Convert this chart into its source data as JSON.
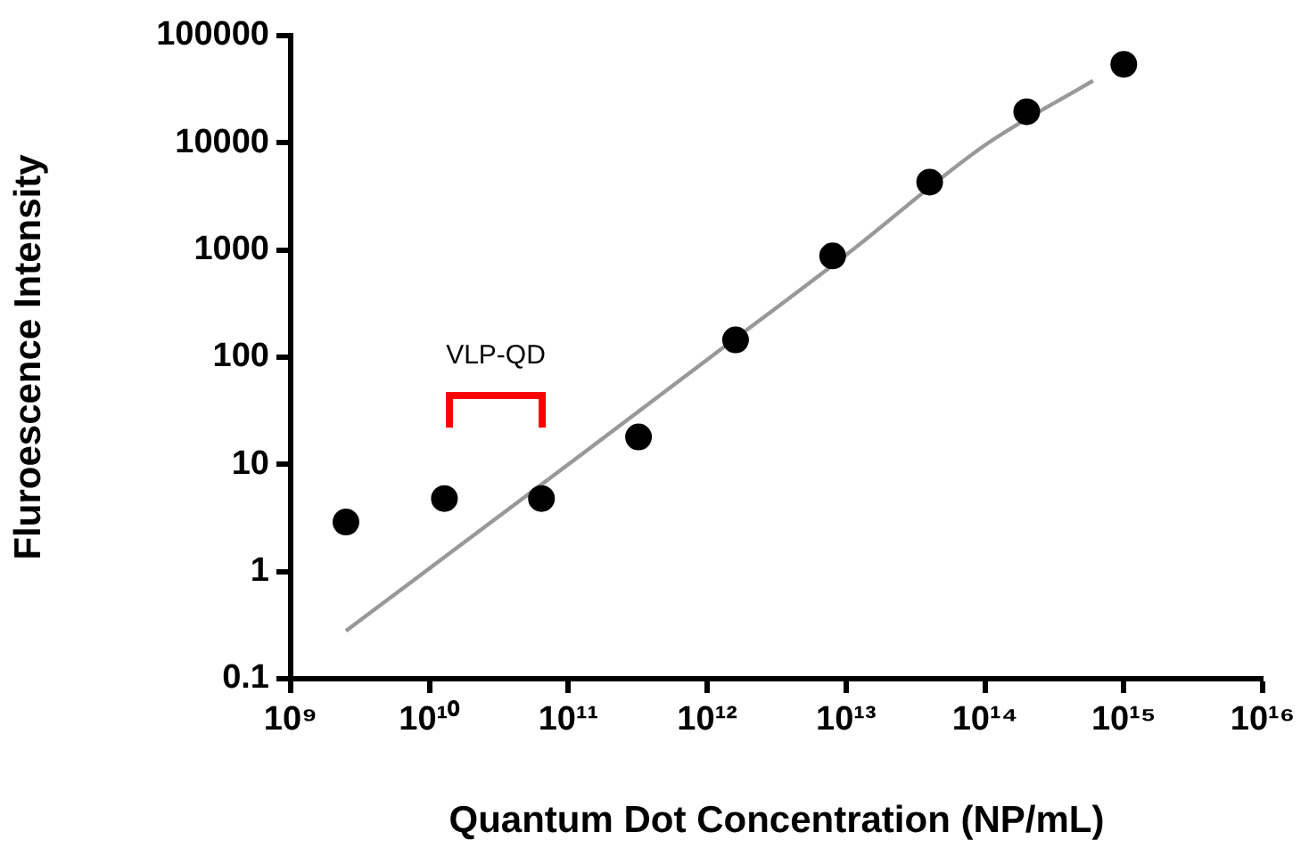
{
  "chart_data": {
    "type": "scatter",
    "xlabel": "Quantum Dot Concentration (NP/mL)",
    "ylabel": "Fluroescence Intensity",
    "log": "xy",
    "grid": false,
    "marker": "circle",
    "xlim": [
      1000000000.0,
      1e+16
    ],
    "ylim": [
      0.1,
      100000
    ],
    "xticks": [
      {
        "value": 1000000000.0,
        "label": "10⁹"
      },
      {
        "value": 10000000000.0,
        "label": "10¹⁰"
      },
      {
        "value": 100000000000.0,
        "label": "10¹¹"
      },
      {
        "value": 1000000000000.0,
        "label": "10¹²"
      },
      {
        "value": 10000000000000.0,
        "label": "10¹³"
      },
      {
        "value": 100000000000000.0,
        "label": "10¹⁴"
      },
      {
        "value": 1000000000000000.0,
        "label": "10¹⁵"
      },
      {
        "value": 1e+16,
        "label": "10¹⁶"
      }
    ],
    "yticks": [
      0.1,
      1,
      10,
      100,
      1000,
      10000,
      100000
    ],
    "series": [
      {
        "type": "line",
        "marker": "none",
        "line_style": "solid",
        "color": "#999999",
        "x": [
          2500000000.0,
          100000000000.0,
          1000000000000.0,
          10000000000000.0,
          100000000000000.0,
          600000000000000.0
        ],
        "values": [
          0.28,
          10,
          95,
          900,
          9500,
          38000
        ]
      },
      {
        "color": "#000000",
        "x": [
          2500000000.0,
          12800000000.0,
          64000000000.0,
          320000000000.0,
          1600000000000.0,
          8000000000000.0,
          40000000000000.0,
          200000000000000.0,
          1000000000000000.0
        ],
        "values": [
          2.9,
          4.8,
          4.8,
          18,
          145,
          880,
          4300,
          19500,
          54000
        ]
      }
    ],
    "annotations": [
      "VLP-QD"
    ]
  }
}
